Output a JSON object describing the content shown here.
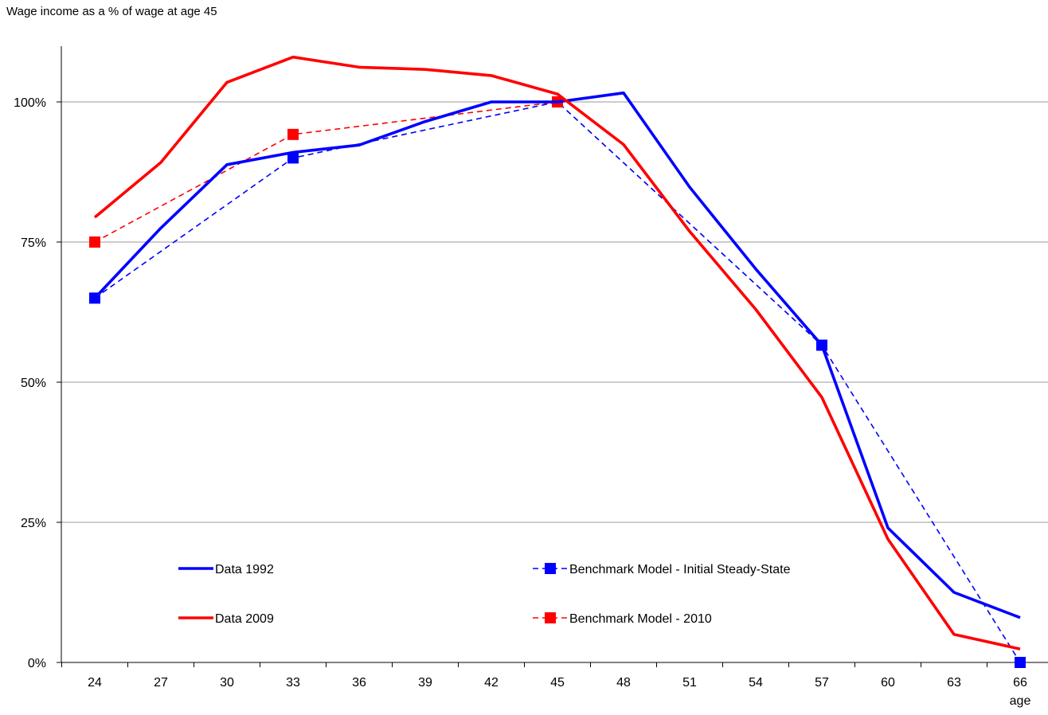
{
  "chart_data": {
    "type": "line",
    "title": "Wage income as a % of wage at age 45",
    "xlabel": "age",
    "ylabel": "",
    "ylim": [
      0,
      110
    ],
    "yticks": [
      0,
      25,
      50,
      75,
      100
    ],
    "ytick_labels": [
      "0%",
      "25%",
      "50%",
      "75%",
      "100%"
    ],
    "x_categories": [
      24,
      27,
      30,
      33,
      36,
      39,
      42,
      45,
      48,
      51,
      54,
      57,
      60,
      63,
      66
    ],
    "grid": "horizontal",
    "legend_position": "bottom",
    "series": [
      {
        "name": "Data 1992",
        "style": "solid",
        "color": "#0000ff",
        "x": [
          24,
          27,
          30,
          33,
          36,
          39,
          42,
          45,
          48,
          51,
          54,
          57,
          60,
          63,
          66
        ],
        "values": [
          65,
          77.5,
          88.8,
          91,
          92.3,
          96.5,
          100,
          100,
          101.6,
          84.8,
          70.2,
          56.6,
          24,
          12.5,
          8
        ]
      },
      {
        "name": "Data 2009",
        "style": "solid",
        "color": "#ff0000",
        "x": [
          24,
          27,
          30,
          33,
          36,
          39,
          42,
          45,
          48,
          51,
          54,
          57,
          60,
          63,
          66
        ],
        "values": [
          79.4,
          89.2,
          103.5,
          108,
          106.2,
          105.8,
          104.7,
          101.4,
          92.4,
          76.9,
          63,
          47.3,
          22,
          5,
          2.4
        ]
      },
      {
        "name": "Benchmark Model - Initial Steady-State",
        "style": "dashed",
        "marker": "square",
        "color": "#0000ff",
        "x": [
          24,
          33,
          45,
          57,
          66
        ],
        "values": [
          65,
          90,
          100,
          56.6,
          0
        ]
      },
      {
        "name": "Benchmark Model - 2010",
        "style": "dashed",
        "marker": "square",
        "color": "#ff0000",
        "x": [
          24,
          33,
          45
        ],
        "values": [
          75,
          94.2,
          100
        ]
      }
    ]
  }
}
